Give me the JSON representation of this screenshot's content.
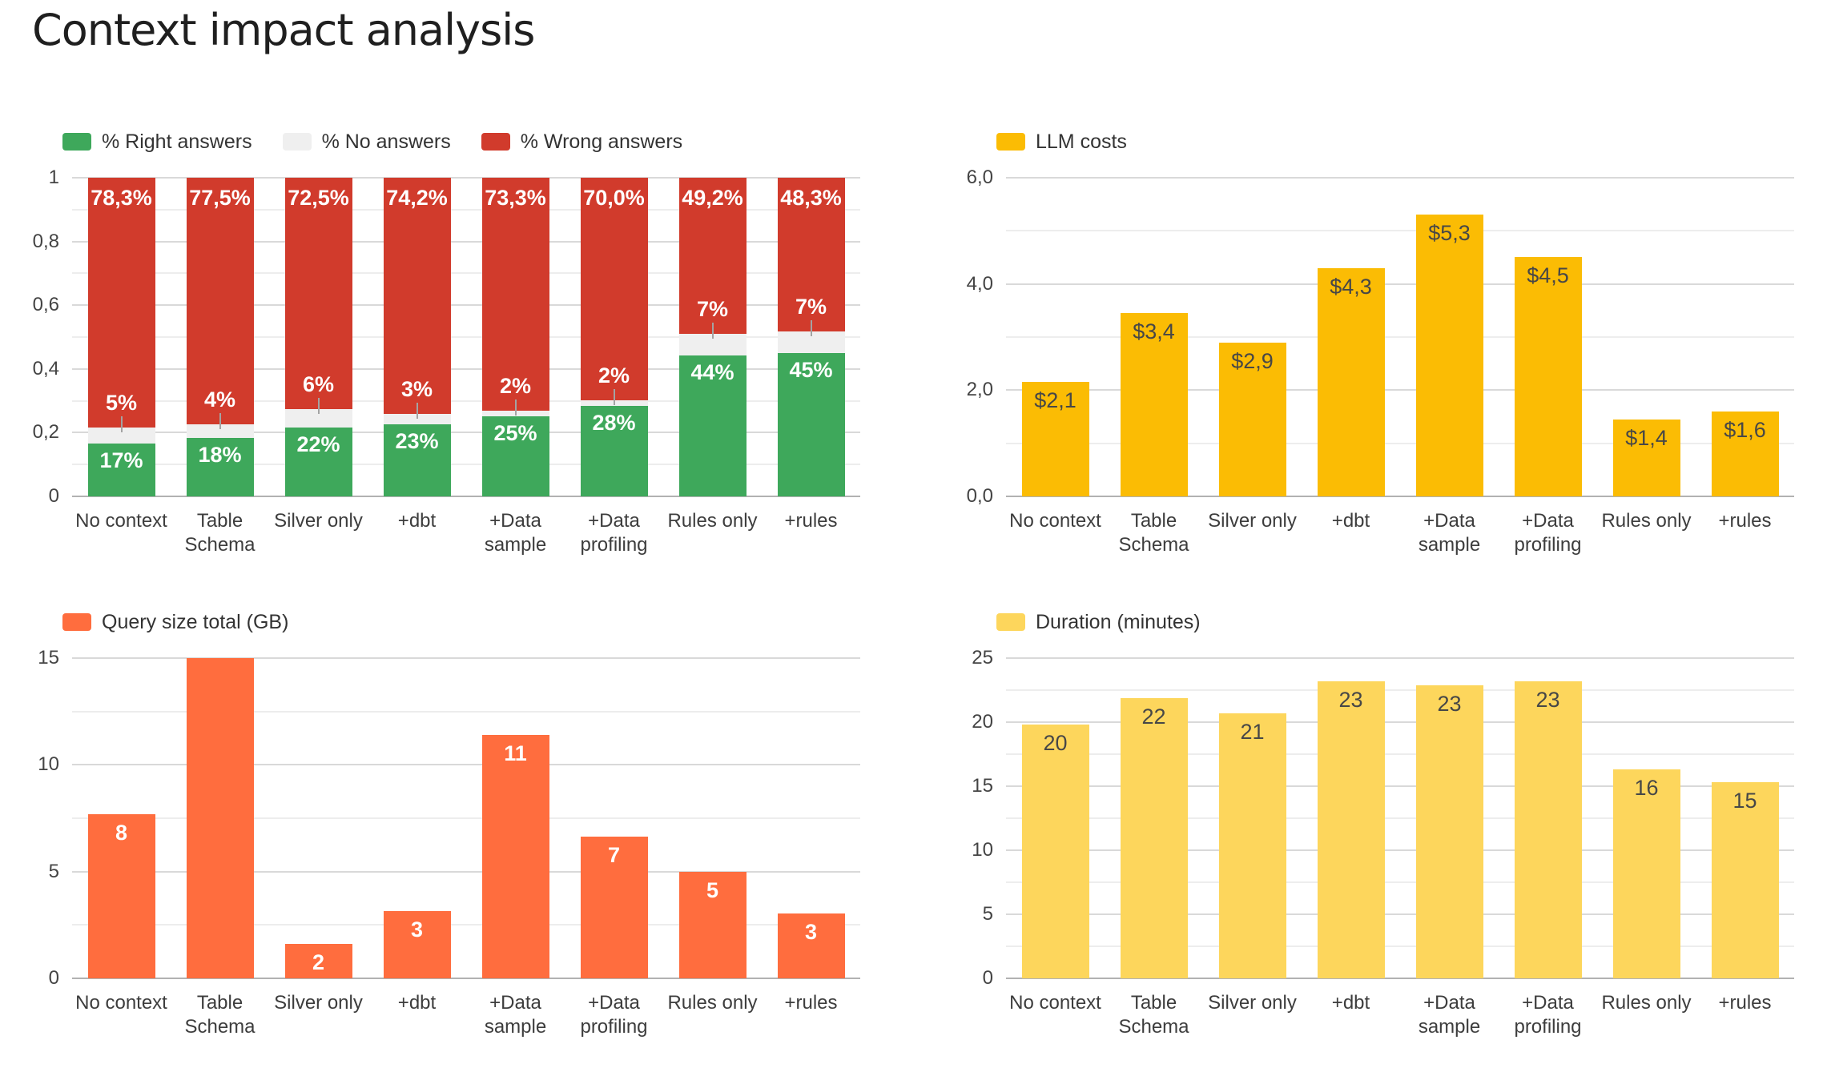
{
  "page": {
    "title": "Context impact analysis"
  },
  "chart_data": [
    {
      "id": "answers",
      "type": "bar",
      "stacked": true,
      "title": "",
      "legend_position": "top-left",
      "grid": true,
      "categories": [
        "No context",
        "Table\nSchema",
        "Silver only",
        "+dbt",
        "+Data\nsample",
        "+Data\nprofiling",
        "Rules only",
        "+rules"
      ],
      "y_axis": {
        "min": 0,
        "max": 1,
        "major_ticks": [
          {
            "value": 1,
            "label": "1"
          },
          {
            "value": 0.8,
            "label": "0,8"
          },
          {
            "value": 0.6,
            "label": "0,6"
          },
          {
            "value": 0.4,
            "label": "0,4"
          },
          {
            "value": 0.2,
            "label": "0,2"
          },
          {
            "value": 0,
            "label": "0"
          }
        ],
        "minor_gridlines": "midpoints"
      },
      "series": [
        {
          "name": "% Right answers",
          "color": "#3EA85B",
          "label_style": "inside-top",
          "label_color": "#ffffff",
          "values": [
            0.167,
            0.183,
            0.217,
            0.225,
            0.25,
            0.283,
            0.442,
            0.45
          ],
          "labels": [
            "17%",
            "18%",
            "22%",
            "23%",
            "25%",
            "28%",
            "44%",
            "45%"
          ]
        },
        {
          "name": "% No answers",
          "color": "#EFEFEF",
          "label_style": "callout-above",
          "label_color": "#ffffff",
          "values": [
            0.05,
            0.042,
            0.058,
            0.033,
            0.017,
            0.017,
            0.067,
            0.067
          ],
          "labels": [
            "5%",
            "4%",
            "6%",
            "3%",
            "2%",
            "2%",
            "7%",
            "7%"
          ]
        },
        {
          "name": "% Wrong answers",
          "color": "#D13B2C",
          "label_style": "inside-top",
          "label_color": "#ffffff",
          "values": [
            0.783,
            0.775,
            0.725,
            0.742,
            0.733,
            0.7,
            0.492,
            0.483
          ],
          "labels": [
            "78,3%",
            "77,5%",
            "72,5%",
            "74,2%",
            "73,3%",
            "70,0%",
            "49,2%",
            "48,3%"
          ]
        }
      ]
    },
    {
      "id": "llm-costs",
      "type": "bar",
      "stacked": false,
      "title": "",
      "legend_position": "top-left",
      "grid": true,
      "categories": [
        "No context",
        "Table\nSchema",
        "Silver only",
        "+dbt",
        "+Data\nsample",
        "+Data\nprofiling",
        "Rules only",
        "+rules"
      ],
      "y_axis": {
        "min": 0,
        "max": 6,
        "major_ticks": [
          {
            "value": 6,
            "label": "6,0"
          },
          {
            "value": 4,
            "label": "4,0"
          },
          {
            "value": 2,
            "label": "2,0"
          },
          {
            "value": 0,
            "label": "0,0"
          }
        ],
        "minor_gridlines": "midpoints"
      },
      "series": [
        {
          "name": "LLM costs",
          "color": "#FBBC04",
          "label_style": "inside-top",
          "label_color": "#474747",
          "values": [
            2.15,
            3.45,
            2.9,
            4.3,
            5.3,
            4.5,
            1.45,
            1.6
          ],
          "labels": [
            "$2,1",
            "$3,4",
            "$2,9",
            "$4,3",
            "$5,3",
            "$4,5",
            "$1,4",
            "$1,6"
          ]
        }
      ]
    },
    {
      "id": "query-size",
      "type": "bar",
      "stacked": false,
      "title": "",
      "legend_position": "top-left",
      "grid": true,
      "categories": [
        "No context",
        "Table\nSchema",
        "Silver only",
        "+dbt",
        "+Data\nsample",
        "+Data\nprofiling",
        "Rules only",
        "+rules"
      ],
      "y_axis": {
        "min": 0,
        "max": 15,
        "major_ticks": [
          {
            "value": 15,
            "label": "15"
          },
          {
            "value": 10,
            "label": "10"
          },
          {
            "value": 5,
            "label": "5"
          },
          {
            "value": 0,
            "label": "0"
          }
        ],
        "minor_gridlines": "midpoints"
      },
      "series": [
        {
          "name": "Query size total (GB)",
          "color": "#FF6D3E",
          "label_style": "inside-top",
          "label_color": "#ffffff",
          "values": [
            7.7,
            15,
            1.6,
            3.15,
            11.4,
            6.65,
            5.0,
            3.05
          ],
          "labels": [
            "8",
            null,
            "2",
            "3",
            "11",
            "7",
            "5",
            "3"
          ]
        }
      ]
    },
    {
      "id": "duration",
      "type": "bar",
      "stacked": false,
      "title": "",
      "legend_position": "top-left",
      "grid": true,
      "categories": [
        "No context",
        "Table\nSchema",
        "Silver only",
        "+dbt",
        "+Data\nsample",
        "+Data\nprofiling",
        "Rules only",
        "+rules"
      ],
      "y_axis": {
        "min": 0,
        "max": 25,
        "major_ticks": [
          {
            "value": 25,
            "label": "25"
          },
          {
            "value": 20,
            "label": "20"
          },
          {
            "value": 15,
            "label": "15"
          },
          {
            "value": 10,
            "label": "10"
          },
          {
            "value": 5,
            "label": "5"
          },
          {
            "value": 0,
            "label": "0"
          }
        ],
        "minor_gridlines": "midpoints"
      },
      "series": [
        {
          "name": "Duration (minutes)",
          "color": "#FDD65C",
          "label_style": "inside-top",
          "label_color": "#474747",
          "values": [
            19.8,
            21.9,
            20.7,
            23.2,
            22.9,
            23.2,
            16.3,
            15.3
          ],
          "labels": [
            "20",
            "22",
            "21",
            "23",
            "23",
            "23",
            "16",
            "15"
          ]
        }
      ]
    }
  ]
}
